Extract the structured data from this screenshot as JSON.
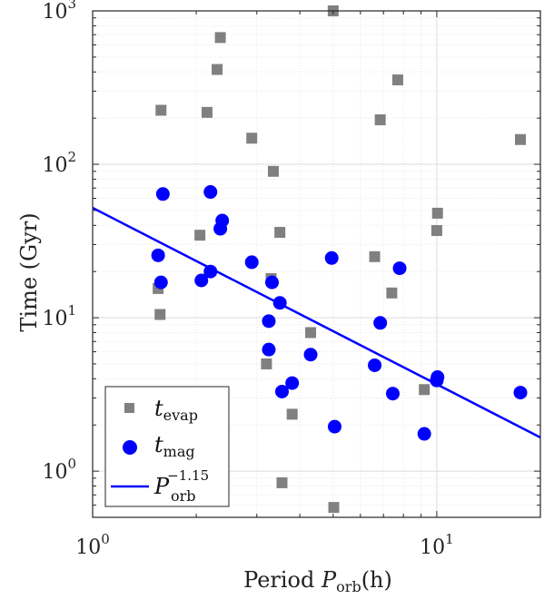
{
  "chart_data": {
    "type": "scatter",
    "x_scale": "log",
    "y_scale": "log",
    "xlim": [
      1,
      20
    ],
    "ylim": [
      0.5,
      1000
    ],
    "x_major_ticks": [
      {
        "value": 1,
        "base": "10",
        "exp": "0"
      },
      {
        "value": 10,
        "base": "10",
        "exp": "1"
      }
    ],
    "y_major_ticks": [
      {
        "value": 1,
        "base": "10",
        "exp": "0"
      },
      {
        "value": 10,
        "base": "10",
        "exp": "1"
      },
      {
        "value": 100,
        "base": "10",
        "exp": "2"
      },
      {
        "value": 1000,
        "base": "10",
        "exp": "3"
      }
    ],
    "xlabel": {
      "prefix": "Period ",
      "var": "P",
      "sub": "orb",
      "suffix": "(h)"
    },
    "ylabel": "Time (Gyr)",
    "grid": true,
    "legend_position": "bottom-left",
    "series": [
      {
        "name": "t_evap",
        "legend_var": "t",
        "legend_sub": "evap",
        "marker": "square",
        "color": "#808080",
        "points": [
          {
            "x": 1.55,
            "y": 15.5
          },
          {
            "x": 1.57,
            "y": 10.5
          },
          {
            "x": 1.58,
            "y": 225
          },
          {
            "x": 2.05,
            "y": 34.5
          },
          {
            "x": 2.15,
            "y": 218
          },
          {
            "x": 2.3,
            "y": 415
          },
          {
            "x": 2.35,
            "y": 670
          },
          {
            "x": 2.9,
            "y": 148
          },
          {
            "x": 3.3,
            "y": 18
          },
          {
            "x": 3.2,
            "y": 5
          },
          {
            "x": 3.35,
            "y": 90
          },
          {
            "x": 3.5,
            "y": 36
          },
          {
            "x": 3.55,
            "y": 0.84
          },
          {
            "x": 3.8,
            "y": 2.35
          },
          {
            "x": 4.3,
            "y": 8
          },
          {
            "x": 5.0,
            "y": 1000
          },
          {
            "x": 5.02,
            "y": 0.58
          },
          {
            "x": 6.6,
            "y": 25
          },
          {
            "x": 6.85,
            "y": 195
          },
          {
            "x": 7.4,
            "y": 14.5
          },
          {
            "x": 7.7,
            "y": 355
          },
          {
            "x": 9.2,
            "y": 3.4
          },
          {
            "x": 10.0,
            "y": 37
          },
          {
            "x": 10.05,
            "y": 48
          },
          {
            "x": 17.5,
            "y": 145
          }
        ]
      },
      {
        "name": "t_mag",
        "legend_var": "t",
        "legend_sub": "mag",
        "marker": "circle",
        "color": "#0000ff",
        "points": [
          {
            "x": 1.55,
            "y": 25.5
          },
          {
            "x": 1.58,
            "y": 17
          },
          {
            "x": 1.6,
            "y": 64
          },
          {
            "x": 2.07,
            "y": 17.5
          },
          {
            "x": 2.2,
            "y": 20
          },
          {
            "x": 2.2,
            "y": 66
          },
          {
            "x": 2.35,
            "y": 38
          },
          {
            "x": 2.38,
            "y": 43
          },
          {
            "x": 2.9,
            "y": 23
          },
          {
            "x": 3.25,
            "y": 9.5
          },
          {
            "x": 3.25,
            "y": 6.2
          },
          {
            "x": 3.32,
            "y": 17
          },
          {
            "x": 3.5,
            "y": 12.5
          },
          {
            "x": 3.55,
            "y": 3.3
          },
          {
            "x": 3.8,
            "y": 3.75
          },
          {
            "x": 4.3,
            "y": 5.75
          },
          {
            "x": 4.95,
            "y": 24.5
          },
          {
            "x": 5.05,
            "y": 1.95
          },
          {
            "x": 6.6,
            "y": 4.9
          },
          {
            "x": 6.85,
            "y": 9.25
          },
          {
            "x": 7.45,
            "y": 3.2
          },
          {
            "x": 7.8,
            "y": 21
          },
          {
            "x": 9.2,
            "y": 1.75
          },
          {
            "x": 10.0,
            "y": 3.9
          },
          {
            "x": 10.05,
            "y": 4.1
          },
          {
            "x": 17.5,
            "y": 3.25
          }
        ]
      },
      {
        "name": "P_orb^-1.15",
        "legend_var": "P",
        "legend_sub": "orb",
        "legend_sup": "−1.15",
        "marker": "line",
        "color": "#0000ff",
        "line": {
          "coefficient": 52,
          "exponent": -1.15,
          "x_range": [
            1,
            20
          ]
        }
      }
    ]
  }
}
